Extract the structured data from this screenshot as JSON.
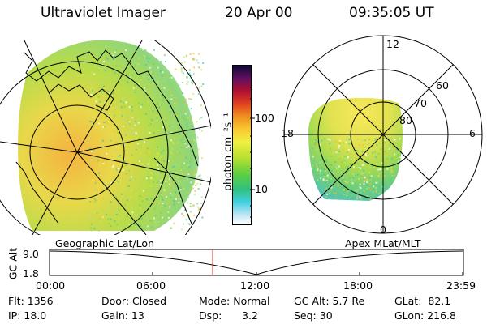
{
  "header": {
    "title": "Ultraviolet Imager",
    "date": "20 Apr 00",
    "time": "09:35:05 UT"
  },
  "colorbar": {
    "label": "photon cm⁻²s⁻¹",
    "ticks": [
      "100",
      "10"
    ],
    "scale": "log"
  },
  "left_panel": {
    "caption": "Geographic Lat/Lon"
  },
  "right_panel": {
    "caption": "Apex MLat/MLT",
    "mlt_labels": [
      "12",
      "18",
      "6",
      "0"
    ],
    "lat_labels": [
      "60",
      "70",
      "80"
    ]
  },
  "timeline": {
    "axis_label": "GC Alt",
    "y_ticks": [
      "9.0",
      "1.8"
    ],
    "x_ticks": [
      "00:00",
      "06:00",
      "12:00",
      "18:00",
      "23:59"
    ],
    "marker_color": "#d63030"
  },
  "info": {
    "flt": "Flt: 1356",
    "ip": "IP: 18.0",
    "door": "Door: Closed",
    "gain": "Gain: 13",
    "mode": "Mode: Normal",
    "dsp_label": "Dsp:",
    "dsp_value": "3.2",
    "gc_alt": "GC Alt: 5.7 Re",
    "seq": "Seq: 30",
    "glat": "GLat:  82.1",
    "glon": "GLon: 216.8"
  }
}
